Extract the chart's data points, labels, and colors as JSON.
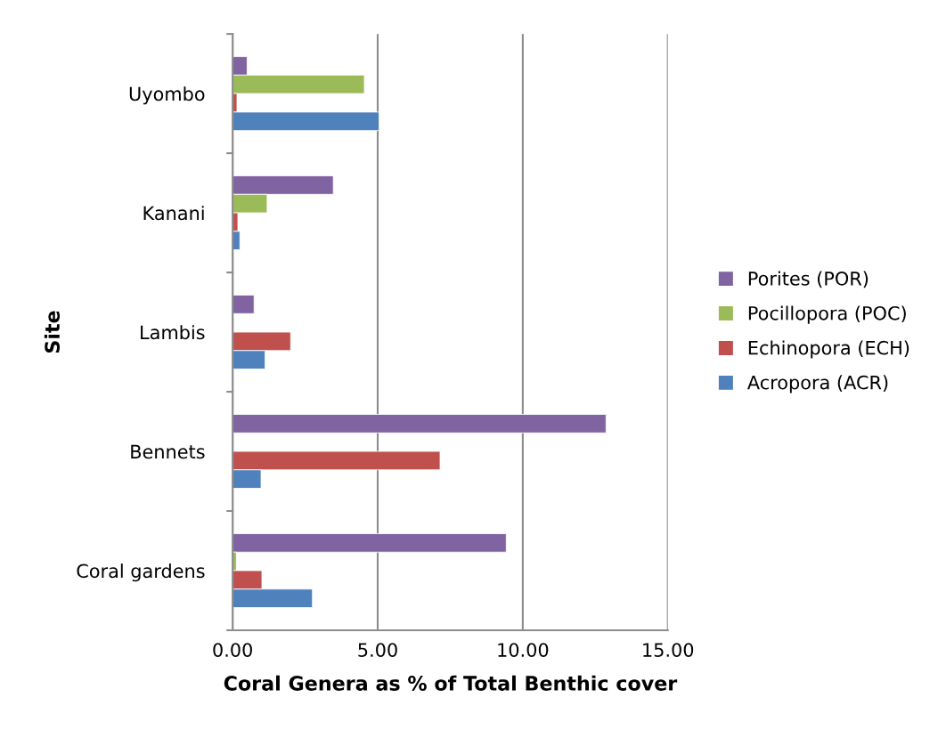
{
  "chart_data": {
    "type": "bar",
    "orientation": "horizontal",
    "xlabel": "Coral Genera as % of Total Benthic cover",
    "ylabel": "Site",
    "categories": [
      "Uyombo",
      "Kanani",
      "Lambis",
      "Bennets",
      "Coral gardens"
    ],
    "series": [
      {
        "name": "Porites (POR)",
        "color": "#8064a2",
        "values": [
          0.5,
          3.47,
          0.74,
          12.87,
          9.43
        ]
      },
      {
        "name": "Pocillopora (POC)",
        "color": "#9bbb59",
        "values": [
          4.54,
          1.19,
          null,
          null,
          0.13
        ]
      },
      {
        "name": "Echinopora (ECH)",
        "color": "#c0504d",
        "values": [
          0.15,
          0.18,
          2.0,
          7.15,
          1.01
        ]
      },
      {
        "name": "Acropora (ACR)",
        "color": "#4f81bd",
        "values": [
          5.05,
          0.25,
          1.12,
          0.98,
          2.75
        ]
      }
    ],
    "xlim": [
      0,
      15
    ],
    "xticks": [
      {
        "value": 0,
        "label": "0.00"
      },
      {
        "value": 5,
        "label": "5.00"
      },
      {
        "value": 10,
        "label": "10.00"
      },
      {
        "value": 15,
        "label": "15.00"
      }
    ],
    "grid": "x",
    "legend": "right"
  }
}
